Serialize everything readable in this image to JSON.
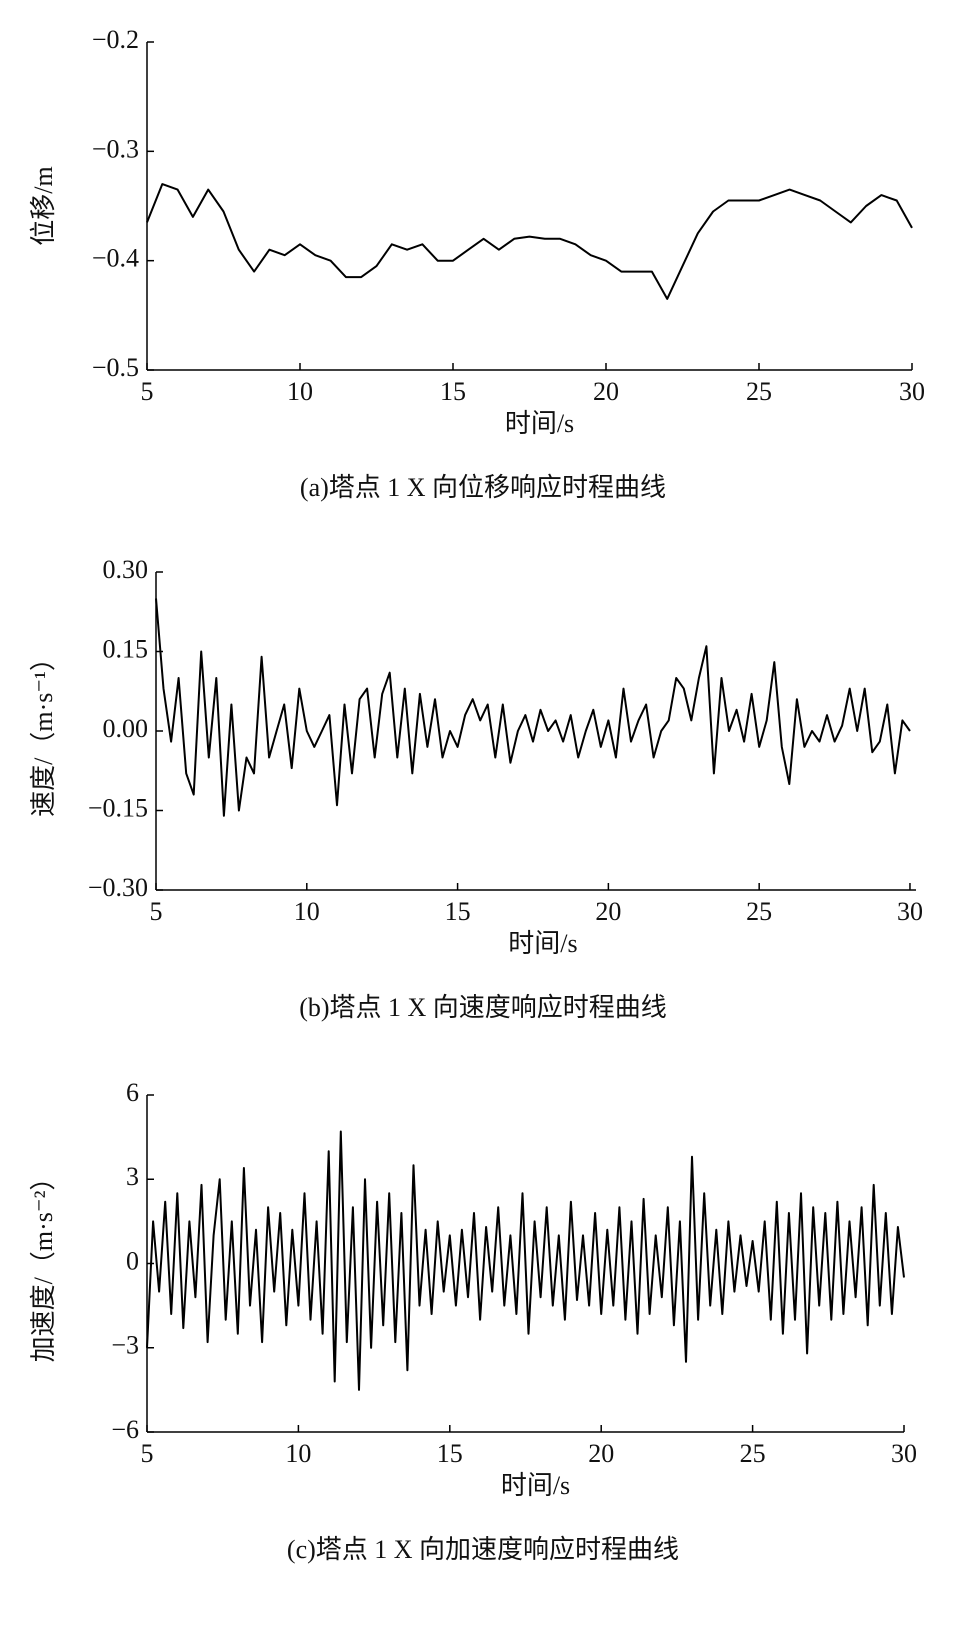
{
  "chart_data": [
    {
      "type": "line",
      "caption": "(a)塔点 1 X 向位移响应时程曲线",
      "xlabel": "时间/s",
      "ylabel": "位移/m",
      "color": "#000000",
      "xlim": [
        5,
        30
      ],
      "xticks": [
        5,
        10,
        15,
        20,
        25,
        30
      ],
      "ylim": [
        -0.5,
        -0.2
      ],
      "yticks": [
        {
          "value": -0.5,
          "label": "−0.5"
        },
        {
          "value": -0.4,
          "label": "−0.4"
        },
        {
          "value": -0.3,
          "label": "−0.3"
        },
        {
          "value": -0.2,
          "label": "−0.2"
        }
      ],
      "x": [
        5,
        5.5,
        6,
        6.5,
        7,
        7.5,
        8,
        8.5,
        9,
        9.5,
        10,
        10.5,
        11,
        11.5,
        12,
        12.5,
        13,
        13.5,
        14,
        14.5,
        15,
        15.5,
        16,
        16.5,
        17,
        17.5,
        18,
        18.5,
        19,
        19.5,
        20,
        20.5,
        21,
        21.5,
        22,
        22.5,
        23,
        23.5,
        24,
        24.5,
        25,
        25.5,
        26,
        26.5,
        27,
        27.5,
        28,
        28.5,
        29,
        29.5,
        30
      ],
      "values": [
        -0.365,
        -0.33,
        -0.335,
        -0.36,
        -0.335,
        -0.355,
        -0.39,
        -0.41,
        -0.39,
        -0.395,
        -0.385,
        -0.395,
        -0.4,
        -0.415,
        -0.415,
        -0.405,
        -0.385,
        -0.39,
        -0.385,
        -0.4,
        -0.4,
        -0.39,
        -0.38,
        -0.39,
        -0.38,
        -0.378,
        -0.38,
        -0.38,
        -0.385,
        -0.395,
        -0.4,
        -0.41,
        -0.41,
        -0.41,
        -0.435,
        -0.405,
        -0.375,
        -0.355,
        -0.345,
        -0.345,
        -0.345,
        -0.34,
        -0.335,
        -0.34,
        -0.345,
        -0.355,
        -0.365,
        -0.35,
        -0.34,
        -0.345,
        -0.37
      ]
    },
    {
      "type": "line",
      "caption": "(b)塔点 1 X 向速度响应时程曲线",
      "xlabel": "时间/s",
      "ylabel": "速度/（m·s⁻¹）",
      "color": "#000000",
      "xlim": [
        5,
        30.2
      ],
      "xticks": [
        5,
        10,
        15,
        20,
        25,
        30
      ],
      "ylim": [
        -0.3,
        0.3
      ],
      "yticks": [
        {
          "value": -0.3,
          "label": "−0.30"
        },
        {
          "value": -0.15,
          "label": "−0.15"
        },
        {
          "value": 0,
          "label": "0.00"
        },
        {
          "value": 0.15,
          "label": "0.15"
        },
        {
          "value": 0.3,
          "label": "0.30"
        }
      ],
      "x": [
        5,
        5.25,
        5.5,
        5.75,
        6,
        6.25,
        6.5,
        6.75,
        7,
        7.25,
        7.5,
        7.75,
        8,
        8.25,
        8.5,
        8.75,
        9,
        9.25,
        9.5,
        9.75,
        10,
        10.25,
        10.5,
        10.75,
        11,
        11.25,
        11.5,
        11.75,
        12,
        12.25,
        12.5,
        12.75,
        13,
        13.25,
        13.5,
        13.75,
        14,
        14.25,
        14.5,
        14.75,
        15,
        15.25,
        15.5,
        15.75,
        16,
        16.25,
        16.5,
        16.75,
        17,
        17.25,
        17.5,
        17.75,
        18,
        18.25,
        18.5,
        18.75,
        19,
        19.25,
        19.5,
        19.75,
        20,
        20.25,
        20.5,
        20.75,
        21,
        21.25,
        21.5,
        21.75,
        22,
        22.25,
        22.5,
        22.75,
        23,
        23.25,
        23.5,
        23.75,
        24,
        24.25,
        24.5,
        24.75,
        25,
        25.25,
        25.5,
        25.75,
        26,
        26.25,
        26.5,
        26.75,
        27,
        27.25,
        27.5,
        27.75,
        28,
        28.25,
        28.5,
        28.75,
        29,
        29.25,
        29.5,
        29.75,
        30
      ],
      "values": [
        0.25,
        0.08,
        -0.02,
        0.1,
        -0.08,
        -0.12,
        0.15,
        -0.05,
        0.1,
        -0.16,
        0.05,
        -0.15,
        -0.05,
        -0.08,
        0.14,
        -0.05,
        0,
        0.05,
        -0.07,
        0.08,
        0,
        -0.03,
        0,
        0.03,
        -0.14,
        0.05,
        -0.08,
        0.06,
        0.08,
        -0.05,
        0.07,
        0.11,
        -0.05,
        0.08,
        -0.08,
        0.07,
        -0.03,
        0.06,
        -0.05,
        0,
        -0.03,
        0.03,
        0.06,
        0.02,
        0.05,
        -0.05,
        0.05,
        -0.06,
        0,
        0.03,
        -0.02,
        0.04,
        0,
        0.02,
        -0.02,
        0.03,
        -0.05,
        0,
        0.04,
        -0.03,
        0.02,
        -0.05,
        0.08,
        -0.02,
        0.02,
        0.05,
        -0.05,
        0,
        0.02,
        0.1,
        0.08,
        0.02,
        0.1,
        0.16,
        -0.08,
        0.1,
        0,
        0.04,
        -0.02,
        0.07,
        -0.03,
        0.02,
        0.13,
        -0.03,
        -0.1,
        0.06,
        -0.03,
        0,
        -0.02,
        0.03,
        -0.02,
        0.01,
        0.08,
        0,
        0.08,
        -0.04,
        -0.02,
        0.05,
        -0.08,
        0.02,
        0
      ]
    },
    {
      "type": "line",
      "caption": "(c)塔点 1 X 向加速度响应时程曲线",
      "xlabel": "时间/s",
      "ylabel": "加速度/（m·s⁻²）",
      "color": "#000000",
      "xlim": [
        5,
        30
      ],
      "xticks": [
        5,
        10,
        15,
        20,
        25,
        30
      ],
      "ylim": [
        -6,
        6
      ],
      "yticks": [
        {
          "value": -6,
          "label": "−6"
        },
        {
          "value": -3,
          "label": "−3"
        },
        0,
        3,
        6
      ],
      "x": [
        5,
        5.2,
        5.4,
        5.6,
        5.8,
        6,
        6.2,
        6.4,
        6.6,
        6.8,
        7,
        7.2,
        7.4,
        7.6,
        7.8,
        8,
        8.2,
        8.4,
        8.6,
        8.8,
        9,
        9.2,
        9.4,
        9.6,
        9.8,
        10,
        10.2,
        10.4,
        10.6,
        10.8,
        11,
        11.2,
        11.4,
        11.6,
        11.8,
        12,
        12.2,
        12.4,
        12.6,
        12.8,
        13,
        13.2,
        13.4,
        13.6,
        13.8,
        14,
        14.2,
        14.4,
        14.6,
        14.8,
        15,
        15.2,
        15.4,
        15.6,
        15.8,
        16,
        16.2,
        16.4,
        16.6,
        16.8,
        17,
        17.2,
        17.4,
        17.6,
        17.8,
        18,
        18.2,
        18.4,
        18.6,
        18.8,
        19,
        19.2,
        19.4,
        19.6,
        19.8,
        20,
        20.2,
        20.4,
        20.6,
        20.8,
        21,
        21.2,
        21.4,
        21.6,
        21.8,
        22,
        22.2,
        22.4,
        22.6,
        22.8,
        23,
        23.2,
        23.4,
        23.6,
        23.8,
        24,
        24.2,
        24.4,
        24.6,
        24.8,
        25,
        25.2,
        25.4,
        25.6,
        25.8,
        26,
        26.2,
        26.4,
        26.6,
        26.8,
        27,
        27.2,
        27.4,
        27.6,
        27.8,
        28,
        28.2,
        28.4,
        28.6,
        28.8,
        29,
        29.2,
        29.4,
        29.6,
        29.8,
        30
      ],
      "values": [
        -3,
        1.5,
        -1,
        2.2,
        -1.8,
        2.5,
        -2.3,
        1.5,
        -1.2,
        2.8,
        -2.8,
        1,
        3,
        -2,
        1.5,
        -2.5,
        3.4,
        -1.5,
        1.2,
        -2.8,
        2,
        -1,
        1.8,
        -2.2,
        1.2,
        -1.5,
        2.5,
        -2,
        1.5,
        -2.5,
        4,
        -4.2,
        4.7,
        -2.8,
        2,
        -4.5,
        3,
        -3,
        2.2,
        -2.2,
        2.5,
        -2.8,
        1.8,
        -3.8,
        3.5,
        -1.5,
        1.2,
        -1.8,
        1.5,
        -1,
        1,
        -1.5,
        1.2,
        -1.2,
        1.8,
        -2,
        1.3,
        -1,
        2,
        -1.5,
        1,
        -1.8,
        2.5,
        -2.5,
        1.5,
        -1.2,
        2,
        -1.5,
        1,
        -2,
        2.2,
        -1.3,
        1,
        -1.5,
        1.8,
        -1.8,
        1.2,
        -1.5,
        2,
        -2,
        1.5,
        -2.5,
        2.3,
        -1.8,
        1,
        -1.2,
        2,
        -2.2,
        1.5,
        -3.5,
        3.8,
        -2,
        2.5,
        -1.5,
        1.2,
        -1.8,
        1.5,
        -1,
        1,
        -0.8,
        0.8,
        -1,
        1.5,
        -2,
        2.2,
        -2.5,
        1.8,
        -2,
        2.5,
        -3.2,
        2,
        -1.5,
        1.8,
        -2,
        2.2,
        -1.8,
        1.5,
        -1.2,
        2,
        -2.2,
        2.8,
        -1.5,
        1.8,
        -1.8,
        1.3,
        -0.5
      ]
    }
  ]
}
